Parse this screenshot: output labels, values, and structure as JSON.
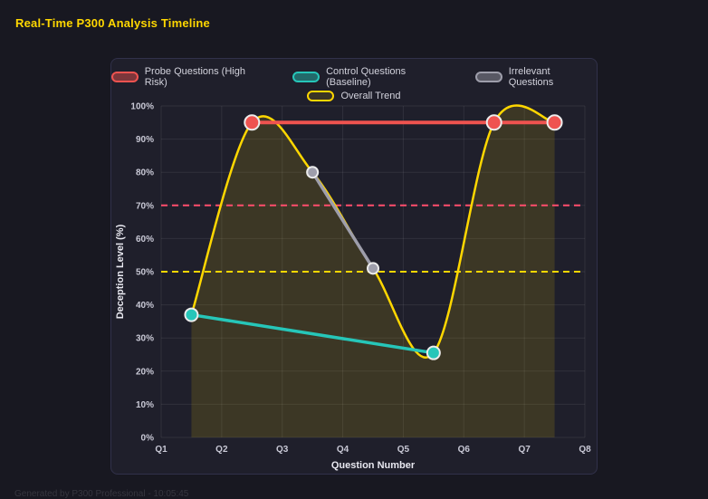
{
  "page": {
    "title": "Real-Time P300 Analysis Timeline",
    "footer": "Generated by P300 Professional - 10:05:45"
  },
  "chart_data": {
    "type": "line",
    "title": "Real-Time P300 Analysis Timeline",
    "xlabel": "Question Number",
    "ylabel": "Deception Level (%)",
    "x_domain": [
      1,
      8
    ],
    "y_domain": [
      0,
      100
    ],
    "x_tick_labels": [
      "Q1",
      "Q2",
      "Q3",
      "Q4",
      "Q5",
      "Q6",
      "Q7",
      "Q8"
    ],
    "y_tick_labels": [
      "0%",
      "10%",
      "20%",
      "30%",
      "40%",
      "50%",
      "60%",
      "70%",
      "80%",
      "90%",
      "100%"
    ],
    "grid": true,
    "legend_position": "top",
    "series": [
      {
        "name": "Probe Questions (High Risk)",
        "color": "#ef5350",
        "swatch_fill": "rgba(239,83,80,0.45)",
        "x": [
          2.5,
          6.5,
          7.5
        ],
        "y": [
          95,
          95,
          95
        ],
        "smooth": false,
        "line_width": 4,
        "point_radius": 8
      },
      {
        "name": "Control Questions (Baseline)",
        "color": "#26c6b9",
        "swatch_fill": "rgba(38,198,185,0.45)",
        "x": [
          1.5,
          5.5
        ],
        "y": [
          37,
          25.5
        ],
        "smooth": false,
        "line_width": 3.5,
        "point_radius": 7
      },
      {
        "name": "Irrelevant Questions",
        "color": "#9e9eab",
        "swatch_fill": "rgba(158,158,171,0.45)",
        "x": [
          3.5,
          4.5
        ],
        "y": [
          80,
          51
        ],
        "smooth": false,
        "line_width": 3.5,
        "point_radius": 6
      },
      {
        "name": "Overall Trend",
        "color": "#ffd700",
        "swatch_fill": "rgba(255,215,0,0.12)",
        "x": [
          1.5,
          2.5,
          3.5,
          4.5,
          5.5,
          6.5,
          7.5
        ],
        "y": [
          37,
          95,
          80,
          51,
          25.5,
          95,
          95
        ],
        "smooth": true,
        "fill": "rgba(255,215,0,0.13)",
        "line_width": 2.5,
        "point_radius": 0
      }
    ],
    "thresholds": [
      {
        "y": 70,
        "color": "#ff4d6d",
        "dash": "7 5"
      },
      {
        "y": 50,
        "color": "#ffd700",
        "dash": "7 5"
      }
    ]
  }
}
